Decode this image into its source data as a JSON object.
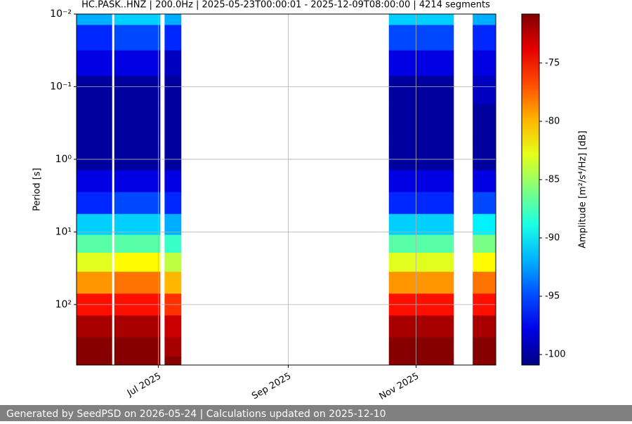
{
  "chart_data": {
    "type": "spectrogram",
    "title": "HC.PASK..HNZ | 200.0Hz | 2025-05-23T00:00:01 - 2025-12-09T08:00:00 | 4214 segments",
    "y_label": "Period [s]",
    "colorbar_label": "Amplitude [m²/s⁴/Hz] [dB]",
    "colormap": "jet",
    "log_y": true,
    "y_inverted": true,
    "grid": true,
    "xlim": [
      "2025-05-23",
      "2025-12-09"
    ],
    "xticks": [
      {
        "value": "2025-07-01",
        "label": "Jul 2025"
      },
      {
        "value": "2025-09-01",
        "label": "Sep 2025"
      },
      {
        "value": "2025-11-01",
        "label": "Nov 2025"
      }
    ],
    "ylim": [
      0.01,
      680
    ],
    "yticks": [
      {
        "value": 0.01,
        "label": "10⁻²"
      },
      {
        "value": 0.1,
        "label": "10⁻¹"
      },
      {
        "value": 1,
        "label": "10⁰"
      },
      {
        "value": 10,
        "label": "10¹"
      },
      {
        "value": 100,
        "label": "10²"
      }
    ],
    "clim": [
      -100.9,
      -70.8
    ],
    "cticks": [
      -75,
      -80,
      -85,
      -90,
      -95,
      -100
    ],
    "periods": [
      0.01,
      0.02,
      0.05,
      0.1,
      0.3,
      1,
      2,
      4,
      8,
      15,
      25,
      50,
      100,
      200,
      400,
      680
    ],
    "columns": [
      {
        "start": "2025-05-23",
        "end": "2025-06-09"
      },
      {
        "start": "2025-06-10",
        "end": "2025-07-02"
      },
      {
        "start": "2025-07-04",
        "end": "2025-07-12"
      },
      {
        "start": "2025-10-19",
        "end": "2025-11-19"
      },
      {
        "start": "2025-11-28",
        "end": "2025-12-09"
      }
    ],
    "z": [
      [
        -92,
        -96,
        -98,
        -100,
        -100,
        -100,
        -98,
        -96,
        -91,
        -87,
        -83,
        -79,
        -75,
        -72,
        -71,
        -71
      ],
      [
        -91,
        -95,
        -98,
        -100,
        -100,
        -100,
        -98,
        -95,
        -91,
        -87,
        -82,
        -78,
        -75,
        -72,
        -71,
        -71
      ],
      [
        -92,
        -96,
        -99,
        -100,
        -100,
        -100,
        -98,
        -96,
        -92,
        -88,
        -84,
        -80,
        -76,
        -73,
        -72,
        -71
      ],
      [
        -91,
        -95,
        -98,
        -100,
        -100,
        -100,
        -98,
        -96,
        -91,
        -87,
        -83,
        -79,
        -75,
        -72,
        -71,
        -71
      ],
      [
        -92,
        -96,
        -98,
        -99,
        -100,
        -100,
        -98,
        -95,
        -90,
        -86,
        -82,
        -78,
        -75,
        -72,
        -71,
        -71
      ]
    ]
  },
  "footer": {
    "text": "Generated by SeedPSD on 2026-05-24 | Calculations updated on 2025-12-10"
  }
}
